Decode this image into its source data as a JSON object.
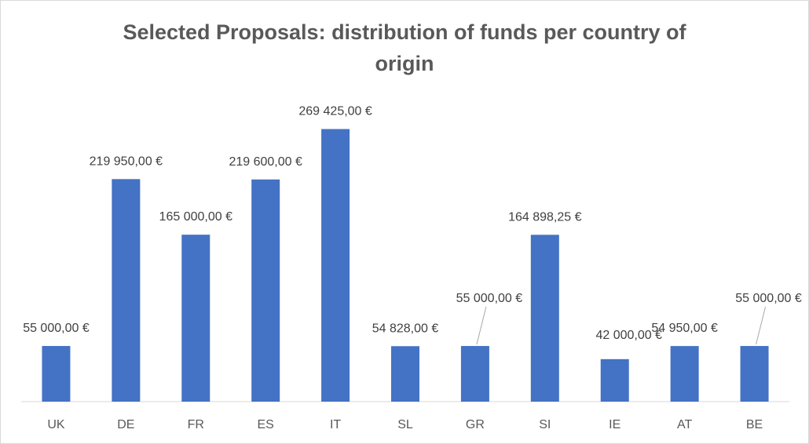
{
  "chart_data": {
    "type": "bar",
    "title_line1": "Selected Proposals: distribution of funds per country of",
    "title_line2": "origin",
    "xlabel": "",
    "ylabel": "",
    "categories": [
      "UK",
      "DE",
      "FR",
      "ES",
      "IT",
      "SL",
      "GR",
      "SI",
      "IE",
      "AT",
      "BE"
    ],
    "values": [
      55000,
      219950,
      165000,
      219600,
      269425,
      54828,
      55000,
      164898.25,
      42000,
      54950,
      55000
    ],
    "value_labels": [
      "55 000,00 €",
      "219 950,00 €",
      "165 000,00 €",
      "219 600,00 €",
      "269 425,00 €",
      "54 828,00 €",
      "55 000,00 €",
      "164 898,25 €",
      "42 000,00 €",
      "54 950,00 €",
      "55 000,00 €"
    ],
    "ylim": [
      0,
      300000
    ],
    "grid": false,
    "legend": "none",
    "bar_color": "#4472c4"
  }
}
